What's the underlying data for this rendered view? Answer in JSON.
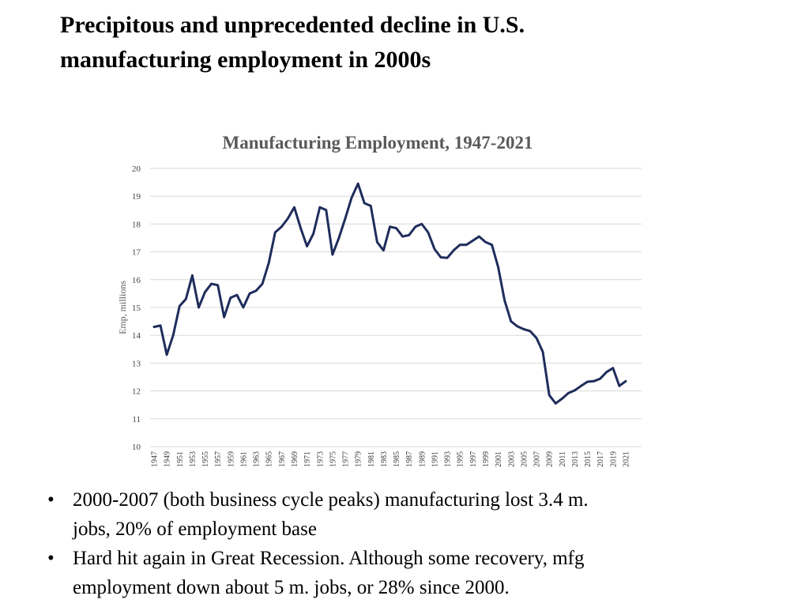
{
  "slide": {
    "title_line1": "Precipitous and unprecedented decline in U.S.",
    "title_line2": "manufacturing employment in 2000s"
  },
  "bullets": [
    {
      "line1": "2000-2007 (both business cycle peaks) manufacturing lost 3.4 m.",
      "line2": "jobs, 20% of employment base"
    },
    {
      "line1": "Hard hit again in Great Recession.  Although some recovery, mfg",
      "line2": "employment down about 5 m. jobs, or 28% since 2000."
    }
  ],
  "colors": {
    "line": "#1f2d5c",
    "grid": "#d9d9d9",
    "axis_text": "#404040",
    "title_text": "#595959"
  },
  "chart_data": {
    "type": "line",
    "title": "Manufacturing Employment, 1947-2021",
    "xlabel": "",
    "ylabel": "Emp, millions",
    "ylim": [
      10,
      20
    ],
    "yticks": [
      10,
      11,
      12,
      13,
      14,
      15,
      16,
      17,
      18,
      19,
      20
    ],
    "grid": true,
    "xtick_labels": [
      "1947",
      "1949",
      "1951",
      "1953",
      "1955",
      "1957",
      "1959",
      "1961",
      "1963",
      "1965",
      "1967",
      "1969",
      "1971",
      "1973",
      "1975",
      "1977",
      "1979",
      "1981",
      "1983",
      "1985",
      "1987",
      "1989",
      "1991",
      "1993",
      "1995",
      "1997",
      "1999",
      "2001",
      "2003",
      "2005",
      "2007",
      "2009",
      "2011",
      "2013",
      "2015",
      "2017",
      "2019",
      "2021"
    ],
    "series": [
      {
        "name": "Manufacturing employment",
        "x": [
          1947,
          1948,
          1949,
          1950,
          1951,
          1952,
          1953,
          1954,
          1955,
          1956,
          1957,
          1958,
          1959,
          1960,
          1961,
          1962,
          1963,
          1964,
          1965,
          1966,
          1967,
          1968,
          1969,
          1970,
          1971,
          1972,
          1973,
          1974,
          1975,
          1976,
          1977,
          1978,
          1979,
          1980,
          1981,
          1982,
          1983,
          1984,
          1985,
          1986,
          1987,
          1988,
          1989,
          1990,
          1991,
          1992,
          1993,
          1994,
          1995,
          1996,
          1997,
          1998,
          1999,
          2000,
          2001,
          2002,
          2003,
          2004,
          2005,
          2006,
          2007,
          2008,
          2009,
          2010,
          2011,
          2012,
          2013,
          2014,
          2015,
          2016,
          2017,
          2018,
          2019,
          2020,
          2021
        ],
        "values": [
          14.3,
          14.35,
          13.3,
          14.0,
          15.05,
          15.3,
          16.15,
          15.0,
          15.55,
          15.85,
          15.8,
          14.65,
          15.35,
          15.45,
          15.0,
          15.5,
          15.6,
          15.85,
          16.6,
          17.7,
          17.9,
          18.2,
          18.6,
          17.85,
          17.2,
          17.65,
          18.6,
          18.5,
          16.9,
          17.5,
          18.2,
          18.95,
          19.45,
          18.75,
          18.65,
          17.35,
          17.05,
          17.9,
          17.85,
          17.55,
          17.6,
          17.9,
          18.0,
          17.7,
          17.1,
          16.8,
          16.78,
          17.05,
          17.25,
          17.25,
          17.4,
          17.55,
          17.35,
          17.25,
          16.45,
          15.25,
          14.5,
          14.32,
          14.22,
          14.15,
          13.9,
          13.4,
          11.85,
          11.55,
          11.72,
          11.92,
          12.02,
          12.18,
          12.33,
          12.35,
          12.44,
          12.68,
          12.82,
          12.18,
          12.35
        ]
      }
    ]
  }
}
